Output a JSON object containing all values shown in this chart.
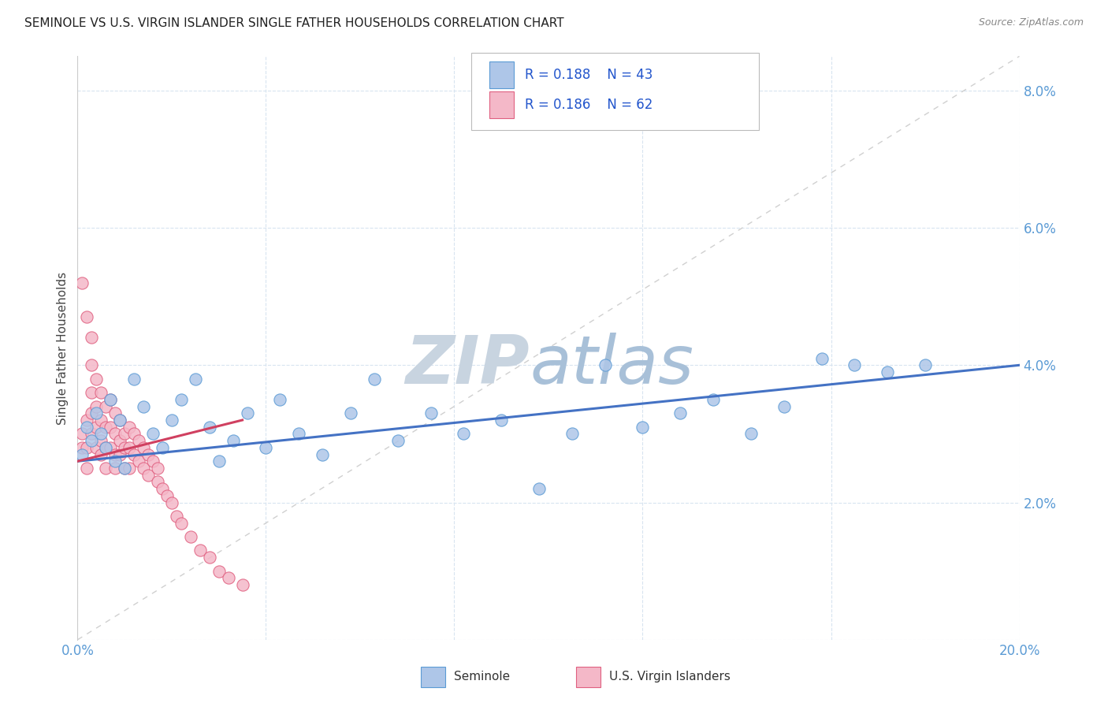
{
  "title": "SEMINOLE VS U.S. VIRGIN ISLANDER SINGLE FATHER HOUSEHOLDS CORRELATION CHART",
  "source": "Source: ZipAtlas.com",
  "ylabel": "Single Father Households",
  "xlim": [
    0,
    0.2
  ],
  "ylim": [
    0,
    0.085
  ],
  "x_ticks": [
    0.0,
    0.04,
    0.08,
    0.12,
    0.16,
    0.2
  ],
  "x_tick_labels": [
    "0.0%",
    "",
    "",
    "",
    "",
    "20.0%"
  ],
  "y_ticks": [
    0.0,
    0.02,
    0.04,
    0.06,
    0.08
  ],
  "y_tick_labels": [
    "",
    "2.0%",
    "4.0%",
    "6.0%",
    "8.0%"
  ],
  "seminole_color": "#aec6e8",
  "seminole_edge_color": "#5b9bd5",
  "usvi_color": "#f4b8c8",
  "usvi_edge_color": "#e06080",
  "seminole_R": 0.188,
  "seminole_N": 43,
  "usvi_R": 0.186,
  "usvi_N": 62,
  "trend_sem_color": "#4472c4",
  "trend_usvi_color": "#d04060",
  "diagonal_line_color": "#d0d0d0",
  "watermark_zip": "ZIP",
  "watermark_atlas": "atlas",
  "watermark_color_zip": "#c8d8e8",
  "watermark_color_atlas": "#b0c8e0",
  "sem_seed": 123,
  "usvi_seed": 456,
  "sem_x": [
    0.001,
    0.002,
    0.003,
    0.004,
    0.005,
    0.006,
    0.007,
    0.008,
    0.009,
    0.01,
    0.012,
    0.014,
    0.016,
    0.018,
    0.02,
    0.022,
    0.025,
    0.028,
    0.03,
    0.033,
    0.036,
    0.04,
    0.043,
    0.047,
    0.052,
    0.058,
    0.063,
    0.068,
    0.075,
    0.082,
    0.09,
    0.098,
    0.105,
    0.112,
    0.12,
    0.128,
    0.135,
    0.143,
    0.15,
    0.158,
    0.165,
    0.172,
    0.18
  ],
  "sem_y": [
    0.027,
    0.031,
    0.029,
    0.033,
    0.03,
    0.028,
    0.035,
    0.026,
    0.032,
    0.025,
    0.038,
    0.034,
    0.03,
    0.028,
    0.032,
    0.035,
    0.038,
    0.031,
    0.026,
    0.029,
    0.033,
    0.028,
    0.035,
    0.03,
    0.027,
    0.033,
    0.038,
    0.029,
    0.033,
    0.03,
    0.032,
    0.022,
    0.03,
    0.04,
    0.031,
    0.033,
    0.035,
    0.03,
    0.034,
    0.041,
    0.04,
    0.039,
    0.04
  ],
  "usvi_x": [
    0.001,
    0.001,
    0.001,
    0.002,
    0.002,
    0.002,
    0.002,
    0.003,
    0.003,
    0.003,
    0.003,
    0.003,
    0.004,
    0.004,
    0.004,
    0.004,
    0.005,
    0.005,
    0.005,
    0.005,
    0.006,
    0.006,
    0.006,
    0.006,
    0.007,
    0.007,
    0.007,
    0.008,
    0.008,
    0.008,
    0.008,
    0.009,
    0.009,
    0.009,
    0.01,
    0.01,
    0.01,
    0.011,
    0.011,
    0.011,
    0.012,
    0.012,
    0.013,
    0.013,
    0.014,
    0.014,
    0.015,
    0.015,
    0.016,
    0.017,
    0.017,
    0.018,
    0.019,
    0.02,
    0.021,
    0.022,
    0.024,
    0.026,
    0.028,
    0.03,
    0.032,
    0.035
  ],
  "usvi_y": [
    0.052,
    0.03,
    0.028,
    0.047,
    0.032,
    0.028,
    0.025,
    0.044,
    0.04,
    0.036,
    0.033,
    0.03,
    0.038,
    0.034,
    0.031,
    0.028,
    0.036,
    0.032,
    0.029,
    0.027,
    0.034,
    0.031,
    0.028,
    0.025,
    0.035,
    0.031,
    0.028,
    0.033,
    0.03,
    0.027,
    0.025,
    0.032,
    0.029,
    0.027,
    0.03,
    0.028,
    0.025,
    0.031,
    0.028,
    0.025,
    0.03,
    0.027,
    0.029,
    0.026,
    0.028,
    0.025,
    0.027,
    0.024,
    0.026,
    0.025,
    0.023,
    0.022,
    0.021,
    0.02,
    0.018,
    0.017,
    0.015,
    0.013,
    0.012,
    0.01,
    0.009,
    0.008
  ],
  "sem_trend_x0": 0.0,
  "sem_trend_x1": 0.2,
  "sem_trend_y0": 0.026,
  "sem_trend_y1": 0.04,
  "usvi_trend_x0": 0.0,
  "usvi_trend_x1": 0.035,
  "usvi_trend_y0": 0.026,
  "usvi_trend_y1": 0.032
}
